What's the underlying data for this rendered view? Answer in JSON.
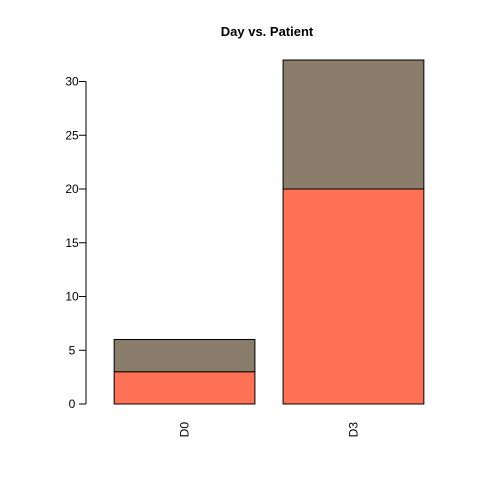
{
  "chart_data": {
    "type": "bar",
    "stacked": true,
    "title": "Day vs. Patient",
    "xlabel": "",
    "ylabel": "",
    "categories": [
      "D0",
      "D3"
    ],
    "series": [
      {
        "color": "#FF7256",
        "values": [
          3,
          20
        ]
      },
      {
        "color": "#8B7D6B",
        "values": [
          3,
          12
        ]
      }
    ],
    "ylim": [
      0,
      32
    ],
    "yticks": [
      0,
      5,
      10,
      15,
      20,
      25,
      30
    ],
    "grid": false,
    "legend": "none",
    "x_tick_label_rotation": "vertical"
  }
}
